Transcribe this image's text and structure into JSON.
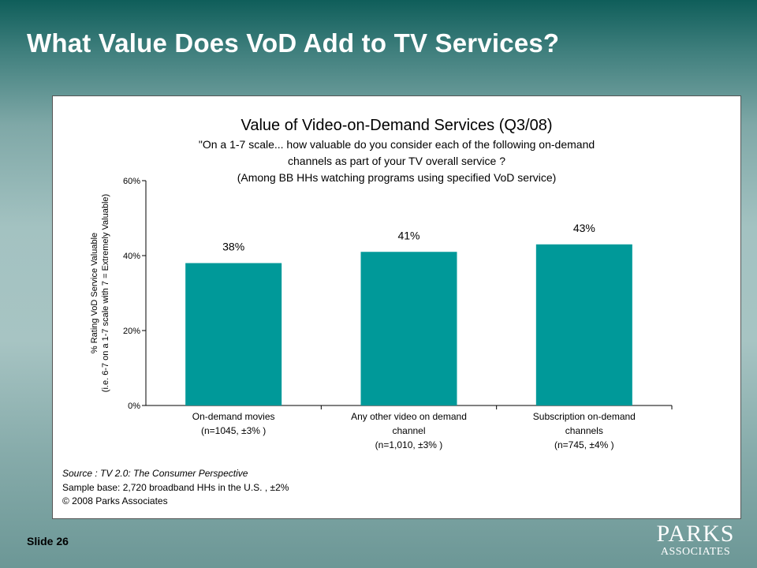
{
  "slide": {
    "title": "What Value Does VoD Add to TV Services?",
    "number_label": "Slide 26",
    "logo_line1": "PARKS",
    "logo_line2": "ASSOCIATES"
  },
  "chart_question": {
    "line1": "\"On a 1-7 scale... how valuable do you consider each of the following on-demand",
    "line2": "channels as part of your TV overall service ?",
    "line3": "(Among BB HHs watching programs using specified VoD service)"
  },
  "footnotes": {
    "source": "Source :  TV 2.0: The Consumer Perspective",
    "sample": "Sample base: 2,720 broadband HHs in the U.S. , ±2%",
    "copyright": "© 2008 Parks Associates"
  },
  "colors": {
    "bar": "#009999"
  },
  "chart_data": {
    "type": "bar",
    "title": "Value of Video-on-Demand Services (Q3/08)",
    "ylabel_line1": "% Rating VoD Service Valuable",
    "ylabel_line2": "(i.e. 6-7 on a 1-7 scale with 7 = Extremely Valuable)",
    "categories": [
      [
        "On-demand movies",
        "(n=1045, ±3% )"
      ],
      [
        "Any other video on demand",
        "channel",
        "(n=1,010, ±3% )"
      ],
      [
        "Subscription on-demand",
        "channels",
        "(n=745, ±4% )"
      ]
    ],
    "values": [
      38,
      41,
      43
    ],
    "value_labels": [
      "38%",
      "41%",
      "43%"
    ],
    "ylim": [
      0,
      60
    ],
    "yticks": [
      0,
      20,
      40,
      60
    ],
    "ytick_labels": [
      "0%",
      "20%",
      "40%",
      "60%"
    ],
    "grid": false,
    "legend": false
  }
}
